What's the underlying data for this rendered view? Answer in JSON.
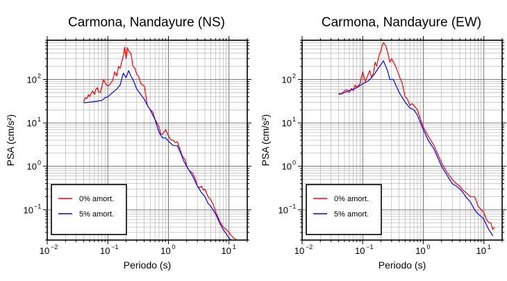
{
  "chart_data": [
    {
      "type": "line",
      "title": "Carmona, Nandayure (NS)",
      "xlabel": "Periodo (s)",
      "ylabel": "PSA (cm/s²)",
      "x_scale": "log",
      "y_scale": "log",
      "xlim": [
        0.01,
        20
      ],
      "ylim": [
        0.02,
        800
      ],
      "grid": true,
      "legend_position": "bottom-left",
      "x_ticks": [
        {
          "base": "10",
          "exp": "−2",
          "value": 0.01
        },
        {
          "base": "10",
          "exp": "−1",
          "value": 0.1
        },
        {
          "base": "10",
          "exp": "0",
          "value": 1
        },
        {
          "base": "10",
          "exp": "1",
          "value": 10
        }
      ],
      "y_ticks": [
        {
          "base": "10",
          "exp": "−1",
          "value": 0.1
        },
        {
          "base": "10",
          "exp": "0",
          "value": 1
        },
        {
          "base": "10",
          "exp": "1",
          "value": 10
        },
        {
          "base": "10",
          "exp": "2",
          "value": 100
        }
      ],
      "series": [
        {
          "name": "0% amort.",
          "color": "#ff0000",
          "points": [
            [
              0.04,
              30
            ],
            [
              0.042,
              38
            ],
            [
              0.045,
              36
            ],
            [
              0.048,
              45
            ],
            [
              0.05,
              40
            ],
            [
              0.053,
              48
            ],
            [
              0.056,
              55
            ],
            [
              0.06,
              45
            ],
            [
              0.063,
              58
            ],
            [
              0.067,
              65
            ],
            [
              0.07,
              52
            ],
            [
              0.075,
              50
            ],
            [
              0.08,
              70
            ],
            [
              0.085,
              100
            ],
            [
              0.09,
              85
            ],
            [
              0.095,
              75
            ],
            [
              0.1,
              70
            ],
            [
              0.11,
              80
            ],
            [
              0.12,
              95
            ],
            [
              0.13,
              150
            ],
            [
              0.14,
              120
            ],
            [
              0.15,
              200
            ],
            [
              0.16,
              180
            ],
            [
              0.17,
              260
            ],
            [
              0.18,
              350
            ],
            [
              0.19,
              560
            ],
            [
              0.2,
              300
            ],
            [
              0.21,
              540
            ],
            [
              0.22,
              450
            ],
            [
              0.24,
              400
            ],
            [
              0.26,
              200
            ],
            [
              0.28,
              180
            ],
            [
              0.3,
              130
            ],
            [
              0.32,
              120
            ],
            [
              0.35,
              80
            ],
            [
              0.4,
              70
            ],
            [
              0.45,
              25
            ],
            [
              0.5,
              20
            ],
            [
              0.55,
              18
            ],
            [
              0.6,
              12
            ],
            [
              0.65,
              10
            ],
            [
              0.7,
              8
            ],
            [
              0.75,
              5.5
            ],
            [
              0.8,
              5.5
            ],
            [
              0.9,
              7
            ],
            [
              1.0,
              5
            ],
            [
              1.1,
              4
            ],
            [
              1.2,
              4
            ],
            [
              1.3,
              3.5
            ],
            [
              1.4,
              3.7
            ],
            [
              1.5,
              2.8
            ],
            [
              1.7,
              1.7
            ],
            [
              1.9,
              1.4
            ],
            [
              2.0,
              1.0
            ],
            [
              2.2,
              0.8
            ],
            [
              2.5,
              0.7
            ],
            [
              2.8,
              0.5
            ],
            [
              3.0,
              0.35
            ],
            [
              3.3,
              0.32
            ],
            [
              3.5,
              0.35
            ],
            [
              3.8,
              0.28
            ],
            [
              4.0,
              0.3
            ],
            [
              4.5,
              0.2
            ],
            [
              5.0,
              0.17
            ],
            [
              5.5,
              0.13
            ],
            [
              6,
              0.09
            ],
            [
              7,
              0.055
            ],
            [
              8,
              0.04
            ],
            [
              9,
              0.035
            ],
            [
              10,
              0.03
            ],
            [
              11,
              0.025
            ],
            [
              12,
              0.022
            ],
            [
              13,
              0.021
            ]
          ]
        },
        {
          "name": "5% amort.",
          "color": "#0000ff",
          "points": [
            [
              0.04,
              29
            ],
            [
              0.05,
              30
            ],
            [
              0.06,
              31
            ],
            [
              0.07,
              32
            ],
            [
              0.08,
              33
            ],
            [
              0.09,
              38
            ],
            [
              0.1,
              40
            ],
            [
              0.12,
              50
            ],
            [
              0.14,
              60
            ],
            [
              0.16,
              75
            ],
            [
              0.18,
              140
            ],
            [
              0.2,
              110
            ],
            [
              0.22,
              160
            ],
            [
              0.24,
              120
            ],
            [
              0.26,
              100
            ],
            [
              0.3,
              60
            ],
            [
              0.35,
              45
            ],
            [
              0.4,
              35
            ],
            [
              0.45,
              25
            ],
            [
              0.5,
              20
            ],
            [
              0.6,
              12
            ],
            [
              0.7,
              6
            ],
            [
              0.8,
              4.5
            ],
            [
              0.9,
              4.5
            ],
            [
              1.0,
              3.8
            ],
            [
              1.2,
              3.0
            ],
            [
              1.4,
              3.0
            ],
            [
              1.6,
              2.0
            ],
            [
              1.8,
              1.3
            ],
            [
              2.0,
              1.0
            ],
            [
              2.2,
              0.8
            ],
            [
              2.5,
              0.6
            ],
            [
              3.0,
              0.35
            ],
            [
              3.5,
              0.25
            ],
            [
              4.0,
              0.2
            ],
            [
              4.5,
              0.14
            ],
            [
              5.0,
              0.12
            ],
            [
              6,
              0.08
            ],
            [
              7,
              0.05
            ],
            [
              8,
              0.035
            ],
            [
              9,
              0.028
            ],
            [
              10,
              0.022
            ],
            [
              11,
              0.02
            ]
          ]
        }
      ]
    },
    {
      "type": "line",
      "title": "Carmona, Nandayure (EW)",
      "xlabel": "Periodo (s)",
      "ylabel": "PSA (cm/s²)",
      "x_scale": "log",
      "y_scale": "log",
      "xlim": [
        0.01,
        20
      ],
      "ylim": [
        0.02,
        800
      ],
      "grid": true,
      "legend_position": "bottom-left",
      "x_ticks": [
        {
          "base": "10",
          "exp": "−2",
          "value": 0.01
        },
        {
          "base": "10",
          "exp": "−1",
          "value": 0.1
        },
        {
          "base": "10",
          "exp": "0",
          "value": 1
        },
        {
          "base": "10",
          "exp": "1",
          "value": 10
        }
      ],
      "y_ticks": [
        {
          "base": "10",
          "exp": "−1",
          "value": 0.1
        },
        {
          "base": "10",
          "exp": "0",
          "value": 1
        },
        {
          "base": "10",
          "exp": "1",
          "value": 10
        },
        {
          "base": "10",
          "exp": "2",
          "value": 100
        }
      ],
      "series": [
        {
          "name": "0% amort.",
          "color": "#ff0000",
          "points": [
            [
              0.04,
              48
            ],
            [
              0.045,
              46
            ],
            [
              0.05,
              55
            ],
            [
              0.055,
              58
            ],
            [
              0.06,
              50
            ],
            [
              0.065,
              62
            ],
            [
              0.07,
              55
            ],
            [
              0.075,
              75
            ],
            [
              0.08,
              65
            ],
            [
              0.09,
              80
            ],
            [
              0.1,
              150
            ],
            [
              0.11,
              90
            ],
            [
              0.12,
              120
            ],
            [
              0.13,
              160
            ],
            [
              0.14,
              110
            ],
            [
              0.15,
              140
            ],
            [
              0.16,
              250
            ],
            [
              0.17,
              200
            ],
            [
              0.18,
              300
            ],
            [
              0.19,
              400
            ],
            [
              0.2,
              450
            ],
            [
              0.21,
              620
            ],
            [
              0.22,
              700
            ],
            [
              0.24,
              600
            ],
            [
              0.26,
              400
            ],
            [
              0.28,
              250
            ],
            [
              0.3,
              300
            ],
            [
              0.35,
              200
            ],
            [
              0.4,
              120
            ],
            [
              0.45,
              80
            ],
            [
              0.5,
              40
            ],
            [
              0.55,
              35
            ],
            [
              0.6,
              25
            ],
            [
              0.65,
              28
            ],
            [
              0.7,
              25
            ],
            [
              0.8,
              20
            ],
            [
              0.9,
              12
            ],
            [
              1.0,
              8
            ],
            [
              1.2,
              5
            ],
            [
              1.5,
              3
            ],
            [
              2.0,
              1.2
            ],
            [
              2.5,
              0.7
            ],
            [
              3.0,
              0.5
            ],
            [
              3.5,
              0.4
            ],
            [
              4.0,
              0.35
            ],
            [
              4.5,
              0.28
            ],
            [
              5.0,
              0.25
            ],
            [
              6,
              0.2
            ],
            [
              7,
              0.2
            ],
            [
              7.5,
              0.16
            ],
            [
              8,
              0.12
            ],
            [
              9,
              0.1
            ],
            [
              10,
              0.085
            ],
            [
              11,
              0.06
            ],
            [
              12,
              0.05
            ],
            [
              13,
              0.05
            ],
            [
              14,
              0.035
            ],
            [
              15,
              0.04
            ]
          ]
        },
        {
          "name": "5% amort.",
          "color": "#0000ff",
          "points": [
            [
              0.04,
              45
            ],
            [
              0.05,
              50
            ],
            [
              0.06,
              55
            ],
            [
              0.07,
              60
            ],
            [
              0.08,
              65
            ],
            [
              0.09,
              72
            ],
            [
              0.1,
              80
            ],
            [
              0.12,
              90
            ],
            [
              0.14,
              110
            ],
            [
              0.16,
              140
            ],
            [
              0.18,
              180
            ],
            [
              0.2,
              220
            ],
            [
              0.22,
              270
            ],
            [
              0.24,
              200
            ],
            [
              0.26,
              150
            ],
            [
              0.28,
              100
            ],
            [
              0.32,
              100
            ],
            [
              0.35,
              75
            ],
            [
              0.4,
              50
            ],
            [
              0.5,
              30
            ],
            [
              0.6,
              22
            ],
            [
              0.7,
              20
            ],
            [
              0.8,
              15
            ],
            [
              0.9,
              10
            ],
            [
              1.0,
              7
            ],
            [
              1.2,
              4
            ],
            [
              1.5,
              2.5
            ],
            [
              2.0,
              1.0
            ],
            [
              2.5,
              0.6
            ],
            [
              3.0,
              0.4
            ],
            [
              3.5,
              0.35
            ],
            [
              4.0,
              0.3
            ],
            [
              4.5,
              0.25
            ],
            [
              5.0,
              0.2
            ],
            [
              6,
              0.15
            ],
            [
              7,
              0.1
            ],
            [
              8,
              0.08
            ],
            [
              9,
              0.07
            ],
            [
              10,
              0.06
            ],
            [
              11,
              0.045
            ],
            [
              12,
              0.035
            ],
            [
              13,
              0.03
            ],
            [
              14,
              0.025
            ]
          ]
        }
      ]
    }
  ]
}
